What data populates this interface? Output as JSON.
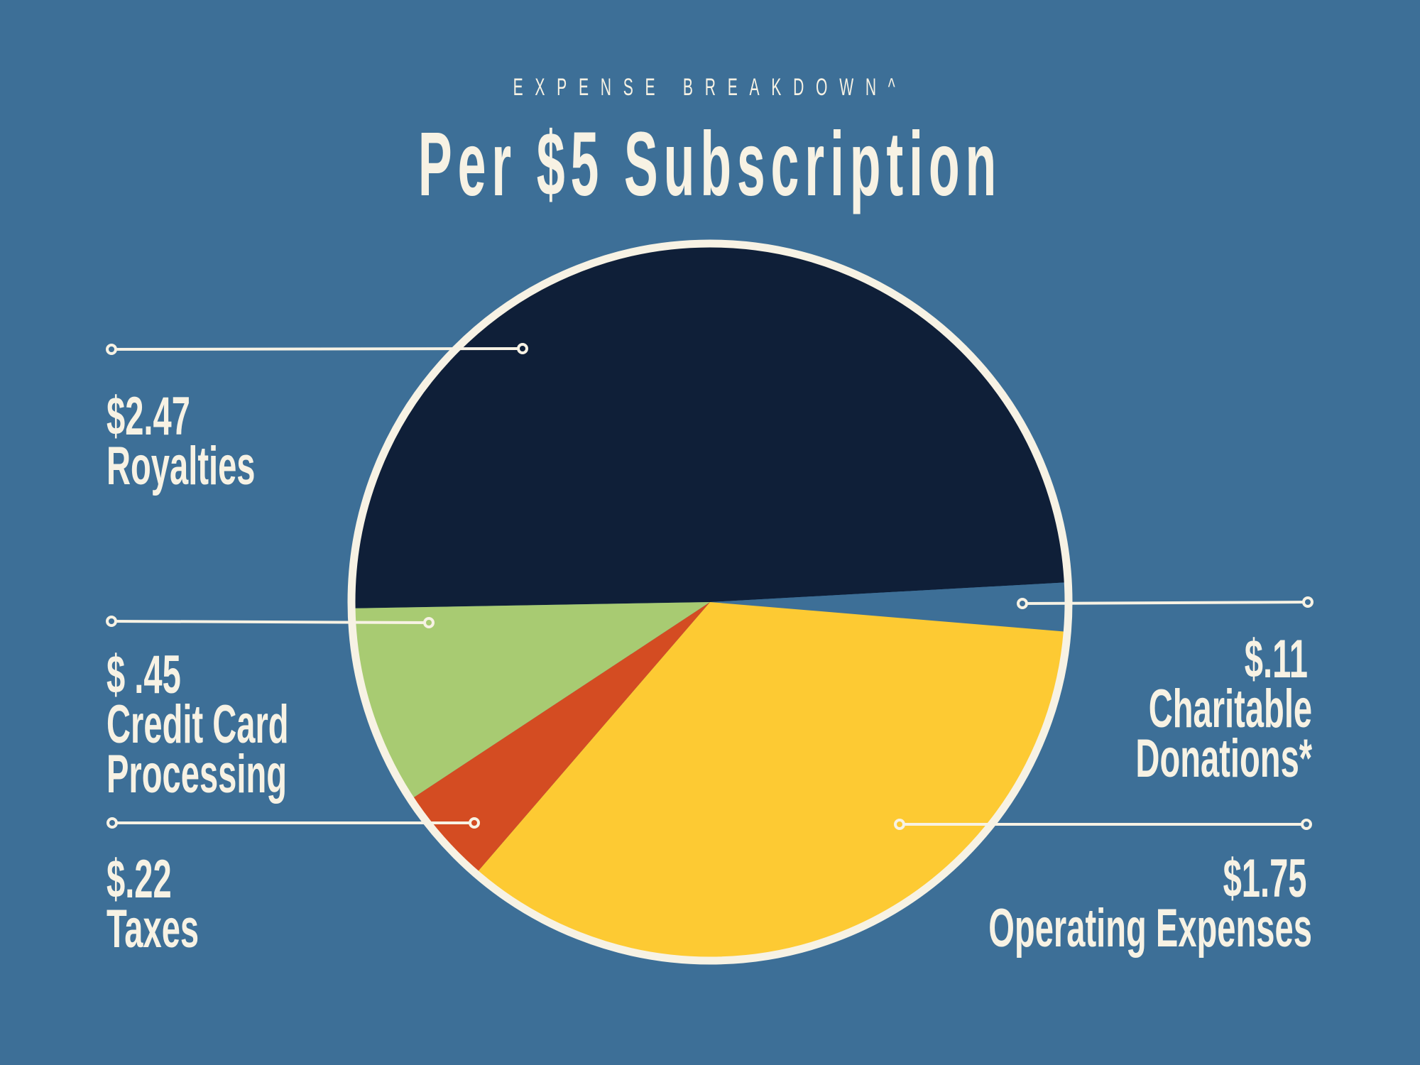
{
  "header": {
    "kicker": "EXPENSE BREAKDOWN^",
    "title": "Per $5 Subscription"
  },
  "colors": {
    "background": "#3d6f97",
    "ring": "#f7f2e4",
    "text": "#f7f2e4"
  },
  "labels": {
    "royalties": {
      "amount": "$2.47",
      "name": "Royalties"
    },
    "credit": {
      "amount": "$ .45",
      "line1": "Credit Card",
      "line2": "Processing"
    },
    "taxes": {
      "amount": "$.22",
      "name": "Taxes"
    },
    "charity": {
      "amount": "$.11",
      "line1": "Charitable",
      "line2": "Donations*"
    },
    "operating": {
      "amount": "$1.75",
      "name": "Operating Expenses"
    }
  },
  "chart_data": {
    "type": "pie",
    "title": "Per $5 Subscription",
    "subtitle": "EXPENSE BREAKDOWN^",
    "total": 5.0,
    "unit": "USD",
    "categories": [
      "Royalties",
      "Charitable Donations*",
      "Operating Expenses",
      "Taxes",
      "Credit Card Processing"
    ],
    "values": [
      2.47,
      0.11,
      1.75,
      0.22,
      0.45
    ],
    "colors": [
      "#0f1f38",
      "#3d6f97",
      "#fdca33",
      "#d44c22",
      "#a8cb72"
    ],
    "start_angle_deg": 179,
    "direction": "clockwise",
    "legend": "callout labels (left: Royalties, Credit Card Processing, Taxes; right: Charitable Donations*, Operating Expenses)"
  }
}
